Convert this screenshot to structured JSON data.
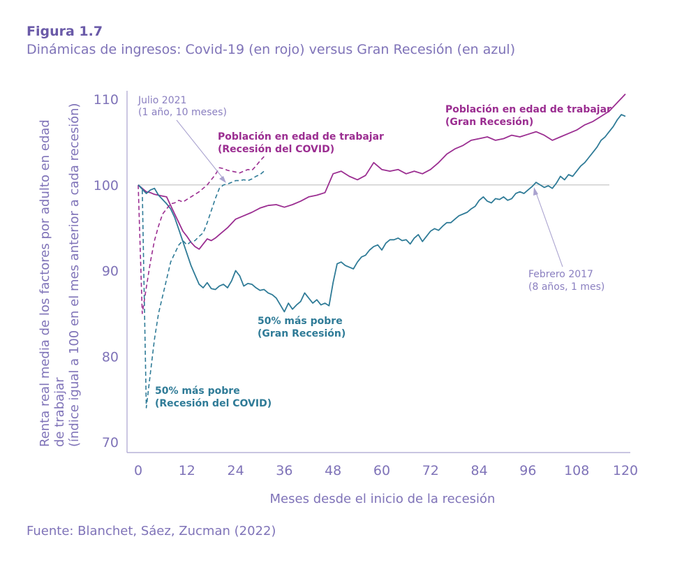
{
  "figure": {
    "label": "Figura 1.7",
    "title": "Dinámicas de ingresos: Covid-19 (en rojo) versus Gran Recesión (en azul)",
    "source": "Fuente: Blanchet, Sáez, Zucman (2022)"
  },
  "colors": {
    "purple": "#9b2e91",
    "teal": "#2f7b97",
    "axis": "#7f73b8",
    "annotation": "#8a7fc0",
    "reference": "#c8c8c8"
  },
  "chart_data": {
    "type": "line",
    "title": "Dinámicas de ingresos: Covid-19 (en rojo) versus Gran Recesión (en azul)",
    "xlabel": "Meses desde el inicio de la recesión",
    "ylabel_lines": [
      "Renta real media de los factores por adulto en edad",
      "de trabajar",
      "(índice igual a 100 en el mes anterior a cada recesión)"
    ],
    "xlim": [
      0,
      120
    ],
    "ylim": [
      70,
      110
    ],
    "xticks": [
      0,
      12,
      24,
      36,
      48,
      60,
      72,
      84,
      96,
      108,
      120
    ],
    "yticks": [
      70,
      80,
      90,
      100,
      110
    ],
    "reference_line": 100,
    "series": [
      {
        "name": "Población en edad de trabajar (Gran Recesión)",
        "color": "#9b2e91",
        "dash": "solid",
        "points": [
          [
            0,
            100
          ],
          [
            1,
            99.6
          ],
          [
            2,
            99.2
          ],
          [
            3,
            99.1
          ],
          [
            4,
            98.9
          ],
          [
            5,
            98.8
          ],
          [
            6,
            98.7
          ],
          [
            7,
            98.6
          ],
          [
            8,
            97.6
          ],
          [
            9,
            96.6
          ],
          [
            10,
            95.6
          ],
          [
            11,
            94.6
          ],
          [
            12,
            94.0
          ],
          [
            13,
            93.3
          ],
          [
            14,
            92.8
          ],
          [
            15,
            92.5
          ],
          [
            16,
            93.1
          ],
          [
            17,
            93.7
          ],
          [
            18,
            93.5
          ],
          [
            19,
            93.8
          ],
          [
            20,
            94.2
          ],
          [
            22,
            95.0
          ],
          [
            24,
            96.0
          ],
          [
            26,
            96.4
          ],
          [
            28,
            96.8
          ],
          [
            30,
            97.3
          ],
          [
            32,
            97.6
          ],
          [
            34,
            97.7
          ],
          [
            36,
            97.4
          ],
          [
            38,
            97.7
          ],
          [
            40,
            98.1
          ],
          [
            42,
            98.6
          ],
          [
            44,
            98.8
          ],
          [
            46,
            99.1
          ],
          [
            48,
            101.3
          ],
          [
            50,
            101.6
          ],
          [
            52,
            101.0
          ],
          [
            54,
            100.6
          ],
          [
            56,
            101.1
          ],
          [
            58,
            102.6
          ],
          [
            60,
            101.8
          ],
          [
            62,
            101.6
          ],
          [
            64,
            101.8
          ],
          [
            66,
            101.3
          ],
          [
            68,
            101.6
          ],
          [
            70,
            101.3
          ],
          [
            72,
            101.8
          ],
          [
            74,
            102.6
          ],
          [
            76,
            103.6
          ],
          [
            78,
            104.2
          ],
          [
            80,
            104.6
          ],
          [
            82,
            105.2
          ],
          [
            84,
            105.4
          ],
          [
            86,
            105.6
          ],
          [
            88,
            105.2
          ],
          [
            90,
            105.4
          ],
          [
            92,
            105.8
          ],
          [
            94,
            105.6
          ],
          [
            96,
            105.9
          ],
          [
            98,
            106.2
          ],
          [
            100,
            105.8
          ],
          [
            102,
            105.2
          ],
          [
            104,
            105.6
          ],
          [
            106,
            106.0
          ],
          [
            108,
            106.4
          ],
          [
            110,
            107.0
          ],
          [
            112,
            107.4
          ],
          [
            114,
            108.0
          ],
          [
            116,
            108.6
          ],
          [
            118,
            109.6
          ],
          [
            120,
            110.6
          ]
        ]
      },
      {
        "name": "50% más pobre (Gran Recesión)",
        "color": "#2f7b97",
        "dash": "solid",
        "points": [
          [
            0,
            100
          ],
          [
            1,
            99.5
          ],
          [
            2,
            99.0
          ],
          [
            3,
            99.4
          ],
          [
            4,
            99.6
          ],
          [
            5,
            98.8
          ],
          [
            6,
            98.3
          ],
          [
            7,
            97.8
          ],
          [
            8,
            97.2
          ],
          [
            9,
            96.2
          ],
          [
            10,
            94.8
          ],
          [
            11,
            93.4
          ],
          [
            12,
            92.0
          ],
          [
            13,
            90.6
          ],
          [
            14,
            89.5
          ],
          [
            15,
            88.4
          ],
          [
            16,
            88.0
          ],
          [
            17,
            88.6
          ],
          [
            18,
            87.9
          ],
          [
            19,
            87.8
          ],
          [
            20,
            88.2
          ],
          [
            21,
            88.4
          ],
          [
            22,
            88.0
          ],
          [
            23,
            88.8
          ],
          [
            24,
            90.0
          ],
          [
            25,
            89.4
          ],
          [
            26,
            88.2
          ],
          [
            27,
            88.5
          ],
          [
            28,
            88.4
          ],
          [
            29,
            88.0
          ],
          [
            30,
            87.7
          ],
          [
            31,
            87.8
          ],
          [
            32,
            87.4
          ],
          [
            33,
            87.2
          ],
          [
            34,
            86.8
          ],
          [
            35,
            86.0
          ],
          [
            36,
            85.2
          ],
          [
            37,
            86.2
          ],
          [
            38,
            85.5
          ],
          [
            39,
            86.0
          ],
          [
            40,
            86.4
          ],
          [
            41,
            87.4
          ],
          [
            42,
            86.8
          ],
          [
            43,
            86.2
          ],
          [
            44,
            86.6
          ],
          [
            45,
            86.0
          ],
          [
            46,
            86.2
          ],
          [
            47,
            85.9
          ],
          [
            48,
            88.6
          ],
          [
            49,
            90.8
          ],
          [
            50,
            91.0
          ],
          [
            51,
            90.6
          ],
          [
            52,
            90.4
          ],
          [
            53,
            90.2
          ],
          [
            54,
            91.0
          ],
          [
            55,
            91.6
          ],
          [
            56,
            91.8
          ],
          [
            57,
            92.4
          ],
          [
            58,
            92.8
          ],
          [
            59,
            93.0
          ],
          [
            60,
            92.4
          ],
          [
            61,
            93.2
          ],
          [
            62,
            93.6
          ],
          [
            63,
            93.6
          ],
          [
            64,
            93.8
          ],
          [
            65,
            93.5
          ],
          [
            66,
            93.6
          ],
          [
            67,
            93.1
          ],
          [
            68,
            93.8
          ],
          [
            69,
            94.2
          ],
          [
            70,
            93.4
          ],
          [
            71,
            94.0
          ],
          [
            72,
            94.6
          ],
          [
            73,
            94.9
          ],
          [
            74,
            94.7
          ],
          [
            75,
            95.2
          ],
          [
            76,
            95.6
          ],
          [
            77,
            95.6
          ],
          [
            78,
            96.0
          ],
          [
            79,
            96.4
          ],
          [
            80,
            96.6
          ],
          [
            81,
            96.8
          ],
          [
            82,
            97.2
          ],
          [
            83,
            97.5
          ],
          [
            84,
            98.2
          ],
          [
            85,
            98.6
          ],
          [
            86,
            98.1
          ],
          [
            87,
            97.9
          ],
          [
            88,
            98.4
          ],
          [
            89,
            98.3
          ],
          [
            90,
            98.6
          ],
          [
            91,
            98.2
          ],
          [
            92,
            98.4
          ],
          [
            93,
            99.0
          ],
          [
            94,
            99.2
          ],
          [
            95,
            99.0
          ],
          [
            96,
            99.4
          ],
          [
            97,
            99.8
          ],
          [
            98,
            100.3
          ],
          [
            99,
            100.0
          ],
          [
            100,
            99.7
          ],
          [
            101,
            99.9
          ],
          [
            102,
            99.6
          ],
          [
            103,
            100.2
          ],
          [
            104,
            101.0
          ],
          [
            105,
            100.6
          ],
          [
            106,
            101.2
          ],
          [
            107,
            101.0
          ],
          [
            108,
            101.6
          ],
          [
            109,
            102.2
          ],
          [
            110,
            102.6
          ],
          [
            111,
            103.2
          ],
          [
            112,
            103.8
          ],
          [
            113,
            104.4
          ],
          [
            114,
            105.2
          ],
          [
            115,
            105.6
          ],
          [
            116,
            106.2
          ],
          [
            117,
            106.8
          ],
          [
            118,
            107.6
          ],
          [
            119,
            108.2
          ],
          [
            120,
            108.0
          ]
        ]
      },
      {
        "name": "Población en edad de trabajar (Recesión del COVID)",
        "color": "#9b2e91",
        "dash": "dashed",
        "points": [
          [
            0,
            100
          ],
          [
            1,
            85.0
          ],
          [
            2,
            88.0
          ],
          [
            3,
            91.0
          ],
          [
            4,
            93.5
          ],
          [
            5,
            95.2
          ],
          [
            6,
            96.6
          ],
          [
            7,
            97.2
          ],
          [
            8,
            97.8
          ],
          [
            9,
            97.9
          ],
          [
            10,
            98.2
          ],
          [
            11,
            98.0
          ],
          [
            12,
            98.3
          ],
          [
            13,
            98.6
          ],
          [
            14,
            98.9
          ],
          [
            15,
            99.2
          ],
          [
            16,
            99.6
          ],
          [
            17,
            100.0
          ],
          [
            18,
            100.6
          ],
          [
            19,
            101.2
          ],
          [
            20,
            102.0
          ],
          [
            21,
            101.9
          ],
          [
            22,
            101.7
          ],
          [
            23,
            101.6
          ],
          [
            24,
            101.5
          ],
          [
            25,
            101.4
          ],
          [
            26,
            101.6
          ],
          [
            27,
            101.8
          ],
          [
            28,
            101.7
          ],
          [
            29,
            102.2
          ],
          [
            30,
            102.8
          ],
          [
            31,
            103.3
          ]
        ]
      },
      {
        "name": "50% más pobre (Recesión del COVID)",
        "color": "#2f7b97",
        "dash": "dashed",
        "points": [
          [
            0,
            100
          ],
          [
            1,
            99.6
          ],
          [
            2,
            74.0
          ],
          [
            3,
            78.0
          ],
          [
            4,
            82.0
          ],
          [
            5,
            85.0
          ],
          [
            6,
            87.0
          ],
          [
            7,
            89.0
          ],
          [
            8,
            91.0
          ],
          [
            9,
            92.0
          ],
          [
            10,
            93.0
          ],
          [
            11,
            93.5
          ],
          [
            12,
            93.0
          ],
          [
            13,
            93.4
          ],
          [
            14,
            93.5
          ],
          [
            15,
            94.0
          ],
          [
            16,
            94.4
          ],
          [
            17,
            95.6
          ],
          [
            18,
            97.0
          ],
          [
            19,
            98.4
          ],
          [
            20,
            99.6
          ],
          [
            21,
            100.0
          ],
          [
            22,
            100.1
          ],
          [
            23,
            100.3
          ],
          [
            24,
            100.5
          ],
          [
            25,
            100.5
          ],
          [
            26,
            100.6
          ],
          [
            27,
            100.5
          ],
          [
            28,
            100.7
          ],
          [
            29,
            101.0
          ],
          [
            30,
            101.2
          ],
          [
            31,
            101.6
          ]
        ]
      }
    ],
    "annotations": {
      "julio_2021": [
        "Julio 2021",
        "(1 año, 10 meses)"
      ],
      "pob_covid": [
        "Población en edad de trabajar",
        "(Recesión del COVID)"
      ],
      "pob_gran": [
        "Población en edad de trabajar",
        "(Gran Recesión)"
      ],
      "pobre_gran": [
        "50% más pobre",
        "(Gran Recesión)"
      ],
      "pobre_covid": [
        "50% más pobre",
        "(Recesión del COVID)"
      ],
      "febrero_2017": [
        "Febrero 2017",
        "(8 años, 1 mes)"
      ]
    }
  }
}
